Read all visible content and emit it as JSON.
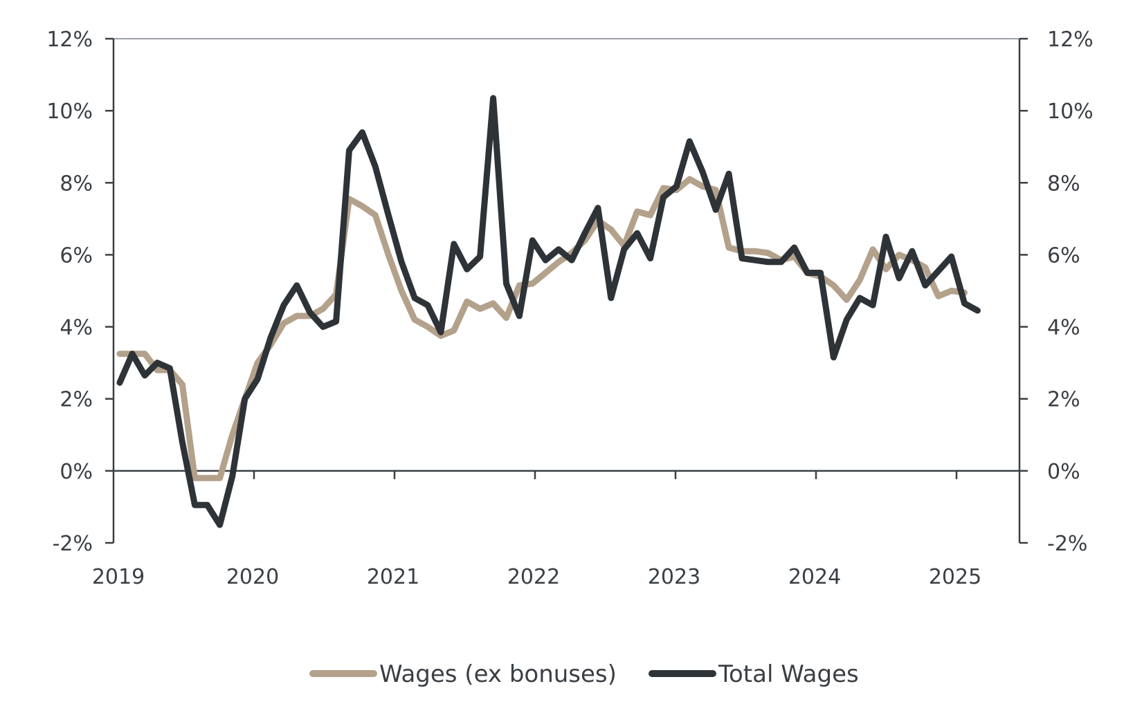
{
  "chart_data": {
    "type": "line",
    "title": "",
    "xlabel": "",
    "ylabel": "",
    "ylim": [
      -2,
      12
    ],
    "yticks": [
      "-2%",
      "0%",
      "2%",
      "4%",
      "6%",
      "8%",
      "10%",
      "12%"
    ],
    "ytick_values": [
      -2,
      0,
      2,
      4,
      6,
      8,
      10,
      12
    ],
    "xlim": [
      2019,
      2025.33
    ],
    "xticks": [
      "2019",
      "2020",
      "2021",
      "2022",
      "2023",
      "2024",
      "2025"
    ],
    "xtick_values": [
      2019,
      2020,
      2021,
      2022,
      2023,
      2024,
      2025
    ],
    "grid": false,
    "legend": {
      "placement": "bottom-center",
      "entries": [
        "Wages (ex bonuses)",
        "Total Wages"
      ]
    },
    "series": [
      {
        "name": "Wages (ex bonuses)",
        "color": "#b3a18b",
        "points": [
          [
            2019.0,
            3.25
          ],
          [
            2019.1,
            3.25
          ],
          [
            2019.2,
            3.25
          ],
          [
            2019.3,
            2.8
          ],
          [
            2019.4,
            2.8
          ],
          [
            2019.5,
            2.4
          ],
          [
            2019.6,
            -0.2
          ],
          [
            2019.7,
            -0.2
          ],
          [
            2019.8,
            -0.2
          ],
          [
            2019.9,
            1.0
          ],
          [
            2020.0,
            2.0
          ],
          [
            2020.1,
            3.0
          ],
          [
            2020.2,
            3.5
          ],
          [
            2020.3,
            4.1
          ],
          [
            2020.4,
            4.3
          ],
          [
            2020.5,
            4.3
          ],
          [
            2020.6,
            4.5
          ],
          [
            2020.7,
            4.9
          ],
          [
            2020.8,
            7.55
          ],
          [
            2020.9,
            7.35
          ],
          [
            2021.0,
            7.1
          ],
          [
            2021.1,
            6.0
          ],
          [
            2021.2,
            5.0
          ],
          [
            2021.3,
            4.2
          ],
          [
            2021.4,
            4.0
          ],
          [
            2021.5,
            3.75
          ],
          [
            2021.6,
            3.9
          ],
          [
            2021.7,
            4.7
          ],
          [
            2021.8,
            4.5
          ],
          [
            2021.9,
            4.65
          ],
          [
            2022.0,
            4.25
          ],
          [
            2022.1,
            5.15
          ],
          [
            2022.2,
            5.2
          ],
          [
            2022.3,
            5.5
          ],
          [
            2022.4,
            5.8
          ],
          [
            2022.5,
            6.05
          ],
          [
            2022.6,
            6.4
          ],
          [
            2022.7,
            6.95
          ],
          [
            2022.8,
            6.7
          ],
          [
            2022.9,
            6.25
          ],
          [
            2023.0,
            7.2
          ],
          [
            2023.1,
            7.1
          ],
          [
            2023.2,
            7.85
          ],
          [
            2023.3,
            7.8
          ],
          [
            2023.4,
            8.1
          ],
          [
            2023.5,
            7.9
          ],
          [
            2023.6,
            7.8
          ],
          [
            2023.7,
            6.2
          ],
          [
            2023.8,
            6.1
          ],
          [
            2023.9,
            6.1
          ],
          [
            2024.0,
            6.05
          ],
          [
            2024.1,
            5.85
          ],
          [
            2024.2,
            5.95
          ],
          [
            2024.3,
            5.5
          ],
          [
            2024.4,
            5.4
          ],
          [
            2024.5,
            5.15
          ],
          [
            2024.6,
            4.75
          ],
          [
            2024.7,
            5.3
          ],
          [
            2024.8,
            6.15
          ],
          [
            2024.9,
            5.6
          ],
          [
            2025.0,
            6.0
          ],
          [
            2025.1,
            5.85
          ],
          [
            2025.2,
            5.65
          ],
          [
            2025.3,
            4.85
          ],
          [
            2025.4,
            5.0
          ],
          [
            2025.5,
            4.95
          ]
        ]
      },
      {
        "name": "Total Wages",
        "color": "#2e3338",
        "points": [
          [
            2019.0,
            2.45
          ],
          [
            2019.1,
            3.25
          ],
          [
            2019.2,
            2.65
          ],
          [
            2019.3,
            3.0
          ],
          [
            2019.4,
            2.85
          ],
          [
            2019.5,
            0.8
          ],
          [
            2019.6,
            -0.95
          ],
          [
            2019.7,
            -0.95
          ],
          [
            2019.8,
            -1.5
          ],
          [
            2019.9,
            -0.15
          ],
          [
            2020.0,
            2.0
          ],
          [
            2020.1,
            2.55
          ],
          [
            2020.2,
            3.7
          ],
          [
            2020.3,
            4.6
          ],
          [
            2020.4,
            5.15
          ],
          [
            2020.5,
            4.4
          ],
          [
            2020.6,
            4.0
          ],
          [
            2020.7,
            4.15
          ],
          [
            2020.8,
            8.9
          ],
          [
            2020.9,
            9.4
          ],
          [
            2021.0,
            8.45
          ],
          [
            2021.1,
            7.1
          ],
          [
            2021.2,
            5.8
          ],
          [
            2021.3,
            4.8
          ],
          [
            2021.4,
            4.6
          ],
          [
            2021.5,
            3.85
          ],
          [
            2021.6,
            6.3
          ],
          [
            2021.7,
            5.6
          ],
          [
            2021.8,
            5.95
          ],
          [
            2021.9,
            10.35
          ],
          [
            2022.0,
            5.2
          ],
          [
            2022.1,
            4.3
          ],
          [
            2022.2,
            6.4
          ],
          [
            2022.3,
            5.85
          ],
          [
            2022.4,
            6.15
          ],
          [
            2022.5,
            5.85
          ],
          [
            2022.6,
            6.6
          ],
          [
            2022.7,
            7.3
          ],
          [
            2022.8,
            4.8
          ],
          [
            2022.9,
            6.15
          ],
          [
            2023.0,
            6.6
          ],
          [
            2023.1,
            5.9
          ],
          [
            2023.2,
            7.6
          ],
          [
            2023.3,
            7.9
          ],
          [
            2023.4,
            9.15
          ],
          [
            2023.5,
            8.3
          ],
          [
            2023.6,
            7.25
          ],
          [
            2023.7,
            8.25
          ],
          [
            2023.8,
            5.9
          ],
          [
            2023.9,
            5.85
          ],
          [
            2024.0,
            5.8
          ],
          [
            2024.1,
            5.8
          ],
          [
            2024.2,
            6.2
          ],
          [
            2024.3,
            5.5
          ],
          [
            2024.4,
            5.5
          ],
          [
            2024.5,
            3.15
          ],
          [
            2024.6,
            4.2
          ],
          [
            2024.7,
            4.8
          ],
          [
            2024.8,
            4.6
          ],
          [
            2024.9,
            6.5
          ],
          [
            2025.0,
            5.35
          ],
          [
            2025.1,
            6.1
          ],
          [
            2025.2,
            5.15
          ],
          [
            2025.3,
            5.55
          ],
          [
            2025.4,
            5.95
          ],
          [
            2025.5,
            4.65
          ],
          [
            2025.6,
            4.45
          ]
        ]
      }
    ]
  }
}
